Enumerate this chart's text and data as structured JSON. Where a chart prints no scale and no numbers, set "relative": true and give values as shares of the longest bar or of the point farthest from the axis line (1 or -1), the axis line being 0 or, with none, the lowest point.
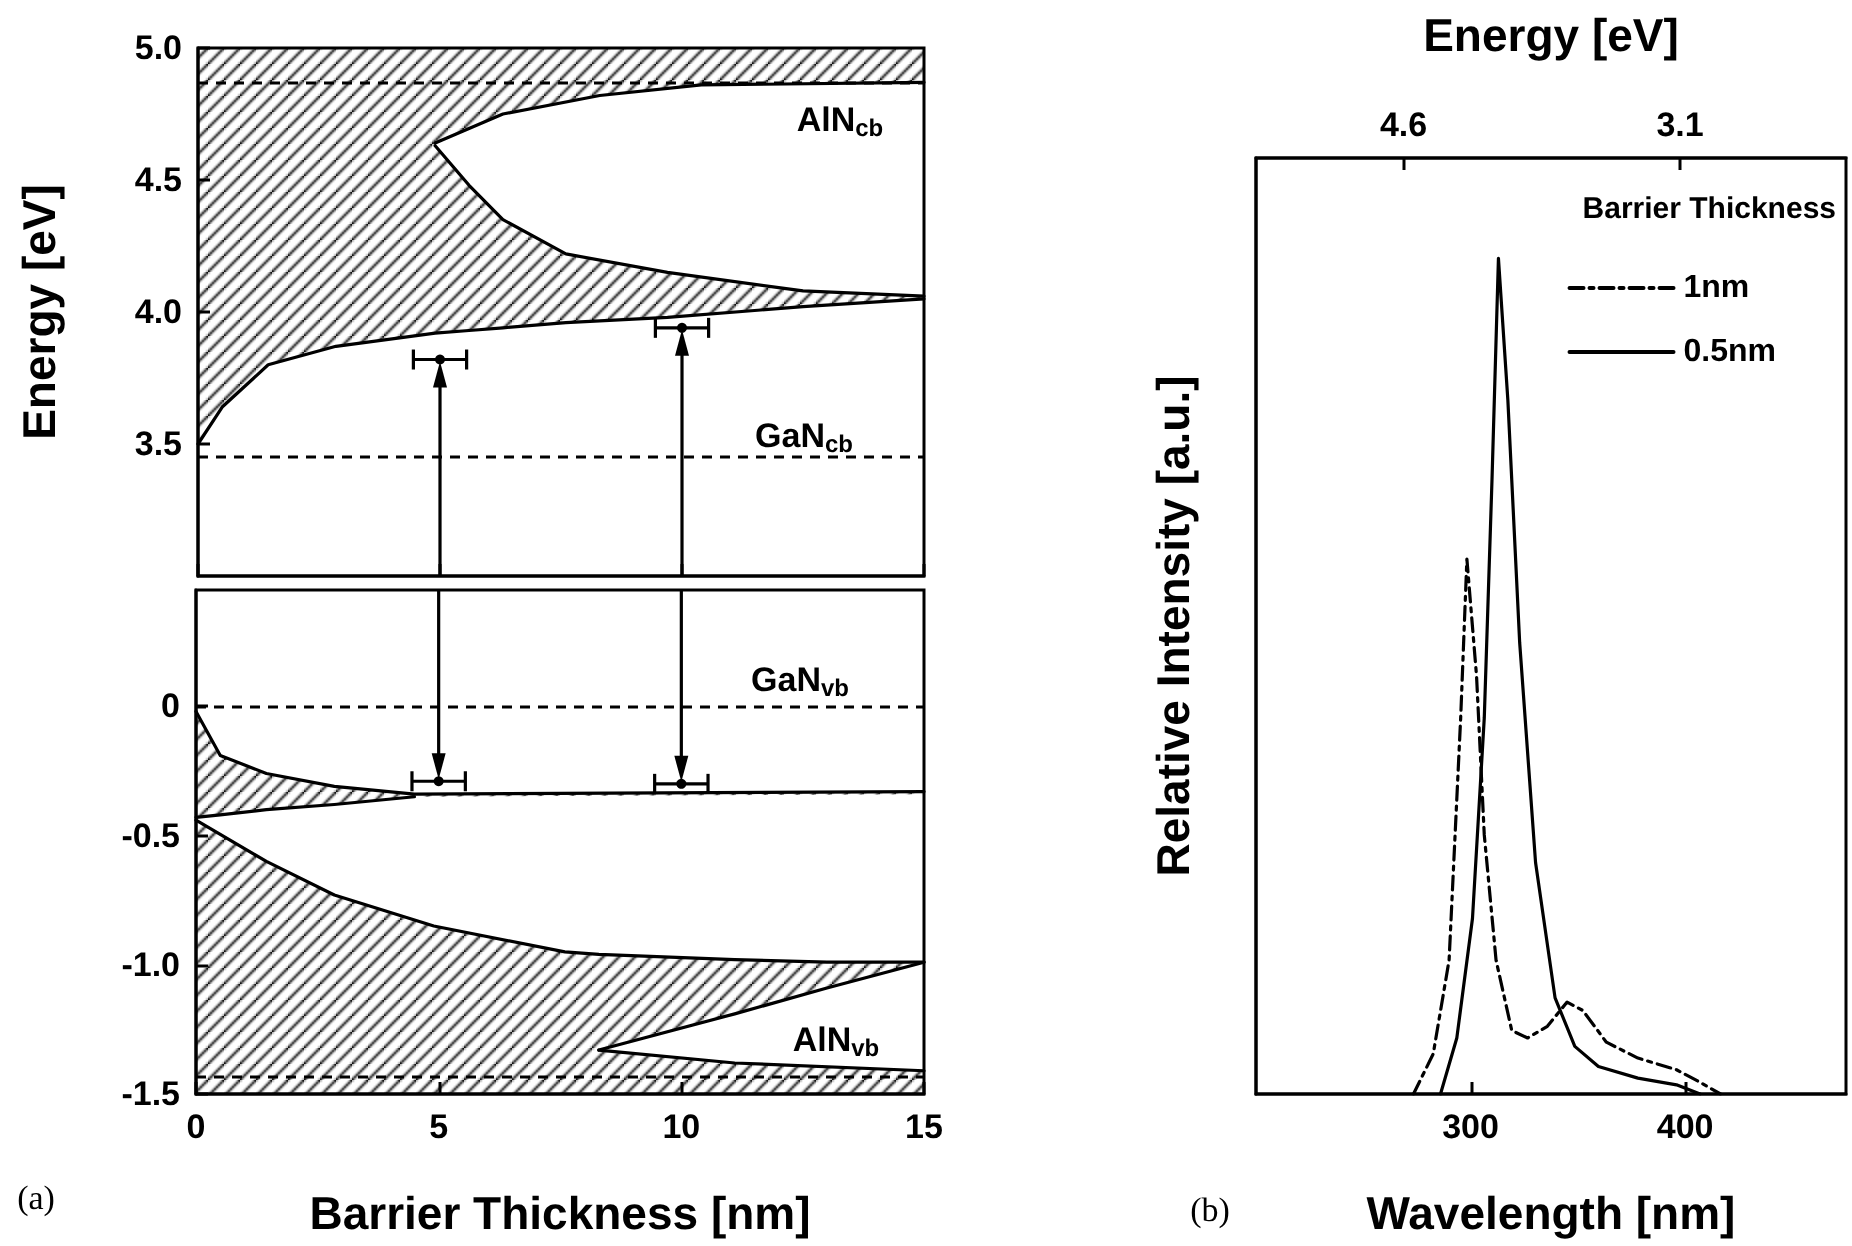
{
  "chart_data": [
    {
      "type": "line",
      "ylabel": "Energy [eV]",
      "xlim": [
        0,
        15
      ],
      "ylim": [
        3.0,
        5.0
      ],
      "xticks": [
        0,
        5,
        10,
        15
      ],
      "yticks": [
        3.5,
        {
          "value": 4,
          "label": "4.0"
        },
        4.5,
        {
          "value": 5,
          "label": "5.0"
        }
      ],
      "tick_labels": "y",
      "marker": "none",
      "series": [
        {
          "color": "#000000",
          "x": [
            0,
            0.5,
            1.45,
            2.85,
            4.9,
            4.9,
            5.6,
            6.3,
            7.6,
            9.7,
            12.5,
            15
          ],
          "values": [
            3.5,
            3.64,
            3.8,
            3.87,
            3.92,
            3.92,
            3.93,
            3.94,
            3.96,
            3.98,
            4.02,
            4.05
          ],
          "lower": [
            3.5,
            3.64,
            3.8,
            3.87,
            3.92,
            3.92,
            3.93,
            3.94,
            3.96,
            3.98,
            4.02,
            4.05
          ],
          "upper": [
            5,
            5,
            5,
            5,
            5,
            4.63,
            4.48,
            4.35,
            4.22,
            4.15,
            4.08,
            4.06
          ]
        },
        {
          "color": "#000000",
          "x": [
            4.9,
            5.6,
            6.3,
            7.6,
            9.7,
            12.5,
            15
          ],
          "values": [
            4.63,
            4.48,
            4.35,
            4.22,
            4.15,
            4.08,
            4.06
          ]
        },
        {
          "color": "#000000",
          "x": [
            4.9,
            6.3,
            8.3,
            10.4,
            15
          ],
          "values": [
            4.64,
            4.75,
            4.82,
            4.86,
            4.87
          ],
          "lower": [
            4.64,
            4.75,
            4.82,
            4.86,
            4.87
          ],
          "upper": [
            5,
            5,
            5,
            5,
            5
          ]
        },
        {
          "type": "scatter",
          "color": "#000000",
          "marker": "circle",
          "x": [
            5,
            10
          ],
          "values": [
            3.82,
            3.94
          ],
          "xerrors": [
            0.55,
            0.55
          ]
        }
      ],
      "ref_lines": [
        {
          "axis": "y",
          "value": 4.87,
          "color": "#000000",
          "line_style": "dashed"
        },
        {
          "axis": "y",
          "value": 3.45,
          "color": "#000000",
          "line_style": "dashed"
        }
      ],
      "annotations": [
        "AlN$_{cb}$",
        "GaN$_{cb}$"
      ]
    },
    {
      "type": "line",
      "xlabel": "Barrier Thickness [nm]",
      "xlim": [
        0,
        15
      ],
      "ylim": [
        -1.5,
        0.45
      ],
      "xticks": [
        0,
        5,
        10,
        15
      ],
      "yticks": [
        -1.5,
        {
          "value": -1,
          "label": "-1.0"
        },
        -0.5,
        0
      ],
      "marker": "none",
      "series": [
        {
          "color": "#000000",
          "x": [
            0,
            0.5,
            1.45,
            2.85,
            4.5,
            15
          ],
          "values": [
            -0.02,
            -0.19,
            -0.26,
            -0.31,
            -0.34,
            -0.33
          ],
          "lower": [
            -0.43,
            -0.42,
            -0.4,
            -0.38,
            -0.35,
            -0.34
          ],
          "upper": [
            -0.02,
            -0.19,
            -0.26,
            -0.31,
            -0.34,
            -0.33
          ]
        },
        {
          "color": "#000000",
          "x": [
            0,
            0.5,
            1.45,
            2.85,
            4.5
          ],
          "values": [
            -0.43,
            -0.42,
            -0.4,
            -0.38,
            -0.35
          ]
        },
        {
          "color": "#000000",
          "x": [
            0,
            1.45,
            2.85,
            4.9,
            7.6,
            8.3,
            8.3,
            11.1,
            13,
            15
          ],
          "values": [
            -0.44,
            -0.6,
            -0.73,
            -0.85,
            -0.95,
            -0.96,
            -0.96,
            -0.98,
            -0.99,
            -0.99
          ],
          "lower": [
            -1.5,
            -1.5,
            -1.5,
            -1.5,
            -1.5,
            -1.5,
            -1.33,
            -1.19,
            -1.09,
            -0.99
          ],
          "upper": [
            -0.44,
            -0.6,
            -0.73,
            -0.85,
            -0.95,
            -0.96,
            -0.96,
            -0.98,
            -0.99,
            -0.99
          ]
        },
        {
          "color": "#000000",
          "x": [
            8.3,
            11.1,
            13,
            15
          ],
          "values": [
            -1.33,
            -1.19,
            -1.09,
            -0.99
          ]
        },
        {
          "color": "#000000",
          "x": [
            8.3,
            11.1,
            15
          ],
          "values": [
            -1.33,
            -1.38,
            -1.41
          ],
          "lower": [
            -1.5,
            -1.5,
            -1.5
          ],
          "upper": [
            -1.33,
            -1.38,
            -1.41
          ]
        },
        {
          "type": "scatter",
          "color": "#000000",
          "marker": "circle",
          "x": [
            5,
            10
          ],
          "values": [
            -0.29,
            -0.3
          ],
          "xerrors": [
            0.55,
            0.55
          ]
        }
      ],
      "ref_lines": [
        {
          "axis": "y",
          "value": 0,
          "color": "#000000",
          "line_style": "dashed"
        },
        {
          "axis": "y",
          "value": -1.43,
          "color": "#000000",
          "line_style": "dashed"
        }
      ],
      "annotations": [
        "GaN$_{vb}$",
        "AlN$_{vb}$",
        "(a)"
      ]
    },
    {
      "type": "line",
      "xlabel": "Wavelength [nm]",
      "ylabel": "Relative Intensity [a.u.]",
      "x2label": "Energy [eV]",
      "legend_title": "Barrier Thickness",
      "legend": "top right",
      "relative": true,
      "marker": "none",
      "xlim": [
        200,
        475
      ],
      "xticks": [
        300,
        400
      ],
      "x2lim": [
        5.4,
        2.2
      ],
      "x2ticks": [
        4.6,
        3.1
      ],
      "series": [
        {
          "name": "1nm",
          "color": "#000000",
          "line_style": "dashed",
          "x": [
            273.4,
            282.6,
            290,
            295.4,
            298.3,
            302.8,
            306.4,
            311.9,
            319.2,
            326.6,
            335.8,
            345,
            352.3,
            363.3,
            378,
            396,
            407,
            416.5
          ],
          "values": [
            0,
            0.048,
            0.16,
            0.45,
            0.64,
            0.5,
            0.31,
            0.16,
            0.076,
            0.067,
            0.081,
            0.11,
            0.1,
            0.062,
            0.043,
            0.029,
            0.014,
            0
          ]
        },
        {
          "name": "0.5nm",
          "color": "#000000",
          "line_style": "solid",
          "x": [
            286,
            293.6,
            300.9,
            306.4,
            310,
            313,
            317.4,
            322.9,
            330.3,
            339.4,
            348.6,
            359.6,
            378,
            396,
            407
          ],
          "values": [
            0,
            0.067,
            0.21,
            0.45,
            0.735,
            1,
            0.83,
            0.54,
            0.277,
            0.115,
            0.057,
            0.033,
            0.019,
            0.011,
            0
          ]
        }
      ],
      "annotations": [
        "(b)"
      ]
    }
  ]
}
